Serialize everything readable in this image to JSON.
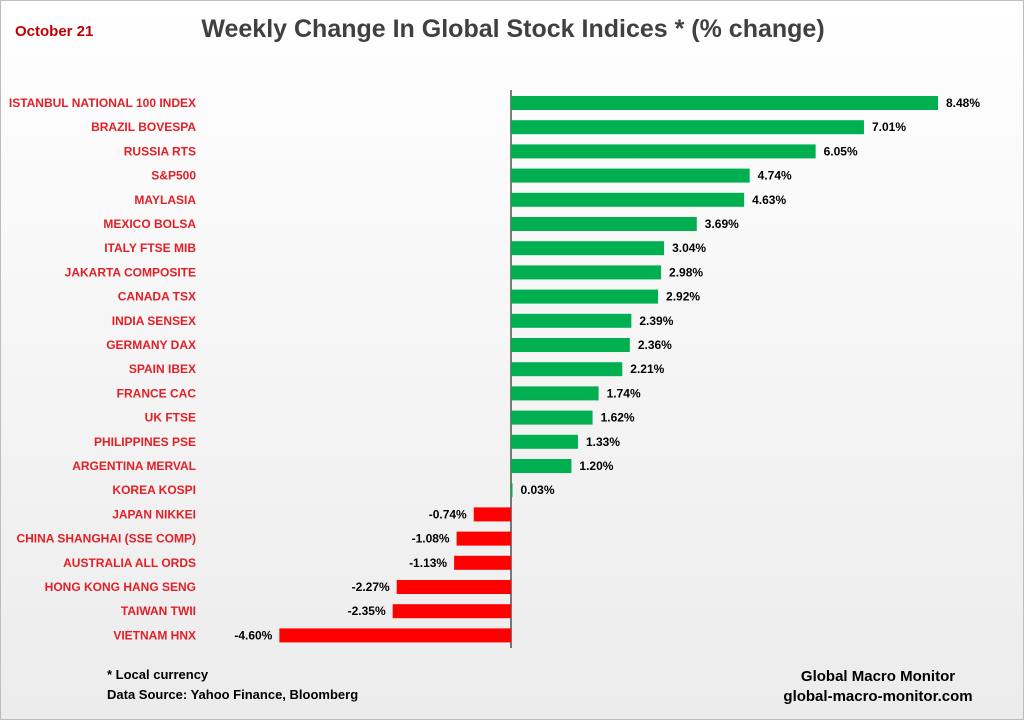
{
  "header": {
    "date": "October 21",
    "title": "Weekly Change In Global Stock Indices * (% change)"
  },
  "footer": {
    "note": "* Local currency",
    "source": "Data Source:  Yahoo Finance, Bloomberg",
    "brand_name": "Global Macro Monitor",
    "brand_url": "global-macro-monitor.com"
  },
  "colors": {
    "positive": "#00b050",
    "negative": "#ff0000",
    "category_text": "#e41e26",
    "axis": "#000000"
  },
  "chart_data": {
    "type": "bar",
    "orientation": "horizontal",
    "title": "Weekly Change In Global Stock Indices * (% change)",
    "xlabel": "",
    "ylabel": "",
    "xlim": [
      -4.6,
      8.48
    ],
    "grid": false,
    "legend": "none",
    "categories": [
      "ISTANBUL NATIONAL 100 INDEX",
      "BRAZIL BOVESPA",
      "RUSSIA RTS",
      "S&P500",
      "MAYLASIA",
      "MEXICO BOLSA",
      "ITALY FTSE MIB",
      "JAKARTA COMPOSITE",
      "CANADA TSX",
      "INDIA SENSEX",
      "GERMANY DAX",
      "SPAIN IBEX",
      "FRANCE CAC",
      "UK FTSE",
      "PHILIPPINES PSE",
      "ARGENTINA MERVAL",
      "KOREA KOSPI",
      "JAPAN NIKKEI",
      "CHINA SHANGHAI (SSE COMP)",
      "AUSTRALIA ALL ORDS",
      "HONG KONG HANG SENG",
      "TAIWAN  TWII",
      "VIETNAM HNX"
    ],
    "values": [
      8.48,
      7.01,
      6.05,
      4.74,
      4.63,
      3.69,
      3.04,
      2.98,
      2.92,
      2.39,
      2.36,
      2.21,
      1.74,
      1.62,
      1.33,
      1.2,
      0.03,
      -0.74,
      -1.08,
      -1.13,
      -2.27,
      -2.35,
      -4.6
    ],
    "value_labels": [
      "8.48%",
      "7.01%",
      "6.05%",
      "4.74%",
      "4.63%",
      "3.69%",
      "3.04%",
      "2.98%",
      "2.92%",
      "2.39%",
      "2.36%",
      "2.21%",
      "1.74%",
      "1.62%",
      "1.33%",
      "1.20%",
      "0.03%",
      "-0.74%",
      "-1.08%",
      "-1.13%",
      "-2.27%",
      "-2.35%",
      "-4.60%"
    ]
  }
}
